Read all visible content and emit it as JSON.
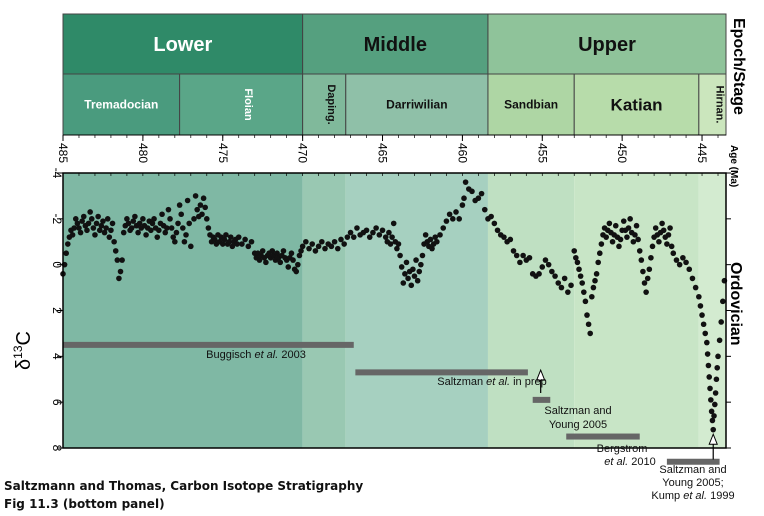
{
  "chart_data": {
    "type": "scatter",
    "title": "",
    "xlabel": "Age (Ma)",
    "ylabel_main": "δ",
    "ylabel_sup": "13",
    "ylabel_tail": "C",
    "period": "Ordovician",
    "header_label": "Epoch/Stage",
    "xlim": [
      485,
      443.5
    ],
    "ylim": [
      8,
      -4
    ],
    "x_ticks": [
      485,
      480,
      475,
      470,
      465,
      460,
      455,
      450,
      445
    ],
    "x_tick_labels": [
      "485",
      "480",
      "475",
      "470",
      "465",
      "460",
      "455",
      "450",
      "445"
    ],
    "y_ticks": [
      -4,
      -2,
      0,
      2,
      4,
      6,
      8
    ],
    "y_tick_labels": [
      "-4",
      "-2",
      "0",
      "2",
      "4",
      "6",
      "8"
    ],
    "epochs": [
      {
        "name": "Lower",
        "start": 485.4,
        "end": 470.0,
        "color": "#2f8a68"
      },
      {
        "name": "Middle",
        "start": 470.0,
        "end": 458.4,
        "color": "#55a07f"
      },
      {
        "name": "Upper",
        "start": 458.4,
        "end": 443.5,
        "color": "#8fc39a"
      }
    ],
    "stages": [
      {
        "name": "Tremadocian",
        "start": 485.4,
        "end": 477.7,
        "color": "#4a9b7e",
        "vertical": false
      },
      {
        "name": "Floian",
        "start": 477.7,
        "end": 470.0,
        "color": "#5aa688",
        "vertical": true
      },
      {
        "name": "Daping.",
        "start": 470.0,
        "end": 467.3,
        "color": "#80b99b",
        "vertical": true
      },
      {
        "name": "Darriwilian",
        "start": 467.3,
        "end": 458.4,
        "color": "#8fc0a8",
        "vertical": false
      },
      {
        "name": "Sandbian",
        "start": 458.4,
        "end": 453.0,
        "color": "#aed6a4",
        "vertical": false
      },
      {
        "name": "Katian",
        "start": 453.0,
        "end": 445.2,
        "color": "#b7dcaa",
        "vertical": false
      },
      {
        "name": "Hirnan.",
        "start": 445.2,
        "end": 443.5,
        "color": "#cbe6bd",
        "vertical": true
      }
    ],
    "background_bands": [
      {
        "start": 485.4,
        "end": 470.0,
        "color": "#7fb8a4"
      },
      {
        "start": 470.0,
        "end": 467.3,
        "color": "#99c8b2"
      },
      {
        "start": 467.3,
        "end": 458.4,
        "color": "#a6d0c0"
      },
      {
        "start": 458.4,
        "end": 453.0,
        "color": "#bfe0c2"
      },
      {
        "start": 453.0,
        "end": 445.2,
        "color": "#c8e5c6"
      },
      {
        "start": 445.2,
        "end": 443.5,
        "color": "#d3ebd0"
      }
    ],
    "points": [
      [
        485.0,
        0.4
      ],
      [
        484.9,
        0.0
      ],
      [
        484.8,
        -0.5
      ],
      [
        484.7,
        -0.9
      ],
      [
        484.6,
        -1.2
      ],
      [
        484.5,
        -1.5
      ],
      [
        484.4,
        -1.3
      ],
      [
        484.3,
        -1.6
      ],
      [
        484.2,
        -2.0
      ],
      [
        484.1,
        -1.8
      ],
      [
        484.0,
        -1.6
      ],
      [
        483.9,
        -1.4
      ],
      [
        483.8,
        -1.9
      ],
      [
        483.7,
        -2.1
      ],
      [
        483.6,
        -1.7
      ],
      [
        483.5,
        -1.5
      ],
      [
        483.4,
        -1.8
      ],
      [
        483.3,
        -2.3
      ],
      [
        483.2,
        -2.0
      ],
      [
        483.1,
        -1.6
      ],
      [
        483.0,
        -1.3
      ],
      [
        482.9,
        -1.8
      ],
      [
        482.8,
        -2.1
      ],
      [
        482.7,
        -1.5
      ],
      [
        482.6,
        -1.7
      ],
      [
        482.5,
        -1.9
      ],
      [
        482.4,
        -1.4
      ],
      [
        482.3,
        -1.6
      ],
      [
        482.2,
        -2.0
      ],
      [
        482.1,
        -1.2
      ],
      [
        482.0,
        -1.5
      ],
      [
        481.9,
        -1.8
      ],
      [
        481.8,
        -1.0
      ],
      [
        481.7,
        -0.6
      ],
      [
        481.6,
        -0.2
      ],
      [
        481.5,
        0.6
      ],
      [
        481.4,
        0.3
      ],
      [
        481.3,
        -0.2
      ],
      [
        481.2,
        -1.4
      ],
      [
        481.1,
        -1.7
      ],
      [
        481.0,
        -2.0
      ],
      [
        480.9,
        -1.8
      ],
      [
        480.8,
        -1.5
      ],
      [
        480.7,
        -1.6
      ],
      [
        480.6,
        -1.9
      ],
      [
        480.5,
        -2.1
      ],
      [
        480.4,
        -1.7
      ],
      [
        480.3,
        -1.4
      ],
      [
        480.2,
        -1.8
      ],
      [
        480.1,
        -1.6
      ],
      [
        480.0,
        -2.0
      ],
      [
        479.9,
        -1.7
      ],
      [
        479.8,
        -1.3
      ],
      [
        479.7,
        -1.6
      ],
      [
        479.6,
        -1.9
      ],
      [
        479.5,
        -1.5
      ],
      [
        479.4,
        -1.8
      ],
      [
        479.3,
        -2.0
      ],
      [
        479.2,
        -1.6
      ],
      [
        479.1,
        -1.2
      ],
      [
        479.0,
        -1.5
      ],
      [
        478.9,
        -1.8
      ],
      [
        478.8,
        -2.2
      ],
      [
        478.7,
        -1.7
      ],
      [
        478.6,
        -1.4
      ],
      [
        478.5,
        -1.6
      ],
      [
        478.4,
        -2.4
      ],
      [
        478.3,
        -2.0
      ],
      [
        478.2,
        -1.6
      ],
      [
        478.1,
        -1.2
      ],
      [
        478.0,
        -1.0
      ],
      [
        477.9,
        -1.4
      ],
      [
        477.8,
        -1.8
      ],
      [
        477.7,
        -2.6
      ],
      [
        477.6,
        -2.2
      ],
      [
        477.5,
        -1.6
      ],
      [
        477.4,
        -1.0
      ],
      [
        477.3,
        -1.3
      ],
      [
        477.2,
        -2.8
      ],
      [
        477.1,
        -1.8
      ],
      [
        477.0,
        -0.8
      ],
      [
        476.8,
        -2.0
      ],
      [
        476.7,
        -3.0
      ],
      [
        476.6,
        -2.4
      ],
      [
        476.5,
        -2.1
      ],
      [
        476.4,
        -2.6
      ],
      [
        476.3,
        -2.2
      ],
      [
        476.2,
        -2.9
      ],
      [
        476.1,
        -2.5
      ],
      [
        476.0,
        -2.0
      ],
      [
        475.9,
        -1.6
      ],
      [
        475.8,
        -1.3
      ],
      [
        475.7,
        -1.0
      ],
      [
        475.6,
        -1.2
      ],
      [
        475.5,
        -1.1
      ],
      [
        475.4,
        -0.9
      ],
      [
        475.3,
        -1.3
      ],
      [
        475.2,
        -1.0
      ],
      [
        475.1,
        -1.2
      ],
      [
        475.0,
        -0.9
      ],
      [
        474.9,
        -1.1
      ],
      [
        474.8,
        -1.3
      ],
      [
        474.7,
        -0.9
      ],
      [
        474.6,
        -1.0
      ],
      [
        474.5,
        -1.2
      ],
      [
        474.4,
        -0.8
      ],
      [
        474.3,
        -1.0
      ],
      [
        474.2,
        -1.1
      ],
      [
        474.1,
        -0.9
      ],
      [
        474.0,
        -1.2
      ],
      [
        473.8,
        -0.9
      ],
      [
        473.6,
        -1.1
      ],
      [
        473.4,
        -0.8
      ],
      [
        473.2,
        -1.0
      ],
      [
        473.0,
        -0.5
      ],
      [
        472.9,
        -0.3
      ],
      [
        472.8,
        -0.5
      ],
      [
        472.7,
        -0.2
      ],
      [
        472.6,
        -0.4
      ],
      [
        472.5,
        -0.6
      ],
      [
        472.4,
        -0.3
      ],
      [
        472.3,
        -0.1
      ],
      [
        472.2,
        -0.4
      ],
      [
        472.1,
        -0.5
      ],
      [
        472.0,
        -0.3
      ],
      [
        471.9,
        -0.6
      ],
      [
        471.8,
        -0.4
      ],
      [
        471.7,
        -0.2
      ],
      [
        471.6,
        -0.5
      ],
      [
        471.5,
        -0.3
      ],
      [
        471.4,
        -0.1
      ],
      [
        471.3,
        -0.4
      ],
      [
        471.2,
        -0.6
      ],
      [
        471.1,
        -0.3
      ],
      [
        471.0,
        -0.2
      ],
      [
        470.9,
        0.1
      ],
      [
        470.8,
        -0.3
      ],
      [
        470.7,
        -0.5
      ],
      [
        470.6,
        -0.2
      ],
      [
        470.5,
        0.2
      ],
      [
        470.4,
        0.3
      ],
      [
        470.3,
        0.0
      ],
      [
        470.2,
        -0.4
      ],
      [
        470.1,
        -0.6
      ],
      [
        470.0,
        -0.8
      ],
      [
        469.8,
        -1.0
      ],
      [
        469.6,
        -0.7
      ],
      [
        469.4,
        -0.9
      ],
      [
        469.2,
        -0.6
      ],
      [
        469.0,
        -0.8
      ],
      [
        468.8,
        -1.0
      ],
      [
        468.6,
        -0.7
      ],
      [
        468.4,
        -0.9
      ],
      [
        468.2,
        -0.8
      ],
      [
        468.0,
        -1.0
      ],
      [
        467.8,
        -0.7
      ],
      [
        467.6,
        -1.1
      ],
      [
        467.4,
        -0.9
      ],
      [
        467.2,
        -1.2
      ],
      [
        467.0,
        -1.4
      ],
      [
        466.8,
        -1.2
      ],
      [
        466.6,
        -1.6
      ],
      [
        466.4,
        -1.3
      ],
      [
        466.2,
        -1.4
      ],
      [
        466.0,
        -1.5
      ],
      [
        465.8,
        -1.2
      ],
      [
        465.6,
        -1.4
      ],
      [
        465.4,
        -1.6
      ],
      [
        465.2,
        -1.3
      ],
      [
        465.0,
        -1.5
      ],
      [
        464.8,
        -1.2
      ],
      [
        464.7,
        -1.0
      ],
      [
        464.6,
        -1.4
      ],
      [
        464.5,
        -0.9
      ],
      [
        464.4,
        -1.2
      ],
      [
        464.3,
        -1.8
      ],
      [
        464.2,
        -1.0
      ],
      [
        464.1,
        -0.7
      ],
      [
        464.0,
        -0.9
      ],
      [
        463.9,
        -0.4
      ],
      [
        463.8,
        0.1
      ],
      [
        463.7,
        0.8
      ],
      [
        463.6,
        0.4
      ],
      [
        463.5,
        -0.1
      ],
      [
        463.4,
        0.6
      ],
      [
        463.3,
        0.3
      ],
      [
        463.2,
        0.9
      ],
      [
        463.1,
        0.2
      ],
      [
        463.0,
        0.5
      ],
      [
        462.9,
        -0.2
      ],
      [
        462.8,
        0.7
      ],
      [
        462.7,
        0.3
      ],
      [
        462.6,
        0.0
      ],
      [
        462.5,
        -0.4
      ],
      [
        462.4,
        -0.9
      ],
      [
        462.3,
        -1.3
      ],
      [
        462.2,
        -1.0
      ],
      [
        462.1,
        -0.8
      ],
      [
        462.0,
        -1.1
      ],
      [
        461.9,
        -0.7
      ],
      [
        461.8,
        -0.9
      ],
      [
        461.7,
        -1.2
      ],
      [
        461.6,
        -1.0
      ],
      [
        461.4,
        -1.3
      ],
      [
        461.2,
        -1.6
      ],
      [
        461.0,
        -1.9
      ],
      [
        460.8,
        -2.2
      ],
      [
        460.6,
        -2.0
      ],
      [
        460.4,
        -2.3
      ],
      [
        460.2,
        -2.0
      ],
      [
        460.0,
        -2.6
      ],
      [
        459.9,
        -2.9
      ],
      [
        459.8,
        -3.6
      ],
      [
        459.6,
        -3.3
      ],
      [
        459.4,
        -3.2
      ],
      [
        459.2,
        -2.8
      ],
      [
        459.0,
        -2.9
      ],
      [
        458.8,
        -3.1
      ],
      [
        458.6,
        -2.4
      ],
      [
        458.4,
        -2.0
      ],
      [
        458.2,
        -2.1
      ],
      [
        458.0,
        -1.8
      ],
      [
        457.8,
        -1.5
      ],
      [
        457.6,
        -1.3
      ],
      [
        457.4,
        -1.2
      ],
      [
        457.2,
        -1.0
      ],
      [
        457.0,
        -1.1
      ],
      [
        456.8,
        -0.6
      ],
      [
        456.6,
        -0.4
      ],
      [
        456.4,
        -0.1
      ],
      [
        456.2,
        -0.4
      ],
      [
        456.0,
        -0.2
      ],
      [
        455.8,
        -0.3
      ],
      [
        455.6,
        0.4
      ],
      [
        455.4,
        0.5
      ],
      [
        455.2,
        0.4
      ],
      [
        455.0,
        0.1
      ],
      [
        454.8,
        -0.2
      ],
      [
        454.6,
        0.0
      ],
      [
        454.4,
        0.3
      ],
      [
        454.2,
        0.5
      ],
      [
        454.0,
        0.8
      ],
      [
        453.8,
        1.0
      ],
      [
        453.6,
        0.6
      ],
      [
        453.4,
        1.2
      ],
      [
        453.2,
        0.9
      ],
      [
        453.0,
        -0.6
      ],
      [
        452.9,
        -0.3
      ],
      [
        452.8,
        -0.1
      ],
      [
        452.7,
        0.2
      ],
      [
        452.6,
        0.5
      ],
      [
        452.5,
        0.8
      ],
      [
        452.4,
        1.2
      ],
      [
        452.3,
        1.6
      ],
      [
        452.2,
        2.2
      ],
      [
        452.1,
        2.6
      ],
      [
        452.0,
        3.0
      ],
      [
        451.9,
        1.4
      ],
      [
        451.8,
        1.0
      ],
      [
        451.7,
        0.7
      ],
      [
        451.6,
        0.4
      ],
      [
        451.5,
        -0.1
      ],
      [
        451.4,
        -0.5
      ],
      [
        451.3,
        -0.9
      ],
      [
        451.2,
        -1.3
      ],
      [
        451.1,
        -1.6
      ],
      [
        451.0,
        -1.2
      ],
      [
        450.9,
        -1.5
      ],
      [
        450.8,
        -1.8
      ],
      [
        450.7,
        -1.4
      ],
      [
        450.6,
        -1.0
      ],
      [
        450.5,
        -1.3
      ],
      [
        450.4,
        -1.7
      ],
      [
        450.3,
        -1.2
      ],
      [
        450.2,
        -0.8
      ],
      [
        450.1,
        -1.1
      ],
      [
        450.0,
        -1.5
      ],
      [
        449.9,
        -1.9
      ],
      [
        449.8,
        -1.5
      ],
      [
        449.7,
        -1.2
      ],
      [
        449.6,
        -1.6
      ],
      [
        449.5,
        -2.0
      ],
      [
        449.4,
        -1.4
      ],
      [
        449.3,
        -1.0
      ],
      [
        449.2,
        -1.3
      ],
      [
        449.1,
        -1.7
      ],
      [
        449.0,
        -1.1
      ],
      [
        448.9,
        -0.6
      ],
      [
        448.8,
        -0.2
      ],
      [
        448.7,
        0.3
      ],
      [
        448.6,
        0.8
      ],
      [
        448.5,
        1.2
      ],
      [
        448.4,
        0.6
      ],
      [
        448.3,
        0.2
      ],
      [
        448.2,
        -0.3
      ],
      [
        448.1,
        -0.8
      ],
      [
        448.0,
        -1.2
      ],
      [
        447.9,
        -1.6
      ],
      [
        447.8,
        -1.3
      ],
      [
        447.7,
        -1.0
      ],
      [
        447.6,
        -1.4
      ],
      [
        447.5,
        -1.8
      ],
      [
        447.4,
        -1.5
      ],
      [
        447.3,
        -1.2
      ],
      [
        447.2,
        -0.9
      ],
      [
        447.1,
        -1.3
      ],
      [
        447.0,
        -1.6
      ],
      [
        446.9,
        -0.8
      ],
      [
        446.8,
        -0.5
      ],
      [
        446.6,
        -0.2
      ],
      [
        446.4,
        0.0
      ],
      [
        446.2,
        -0.3
      ],
      [
        446.0,
        -0.1
      ],
      [
        445.8,
        0.2
      ],
      [
        445.6,
        0.6
      ],
      [
        445.4,
        1.0
      ],
      [
        445.2,
        1.4
      ],
      [
        445.1,
        1.8
      ],
      [
        445.0,
        2.2
      ],
      [
        444.9,
        2.6
      ],
      [
        444.8,
        3.0
      ],
      [
        444.7,
        3.4
      ],
      [
        444.65,
        3.9
      ],
      [
        444.6,
        4.4
      ],
      [
        444.55,
        4.9
      ],
      [
        444.5,
        5.4
      ],
      [
        444.45,
        5.9
      ],
      [
        444.4,
        6.4
      ],
      [
        444.35,
        6.8
      ],
      [
        444.3,
        7.2
      ],
      [
        444.25,
        6.6
      ],
      [
        444.2,
        6.1
      ],
      [
        444.15,
        5.6
      ],
      [
        444.1,
        5.0
      ],
      [
        444.05,
        4.5
      ],
      [
        444.0,
        4.0
      ],
      [
        443.9,
        3.3
      ],
      [
        443.8,
        2.5
      ],
      [
        443.7,
        1.6
      ],
      [
        443.6,
        0.7
      ]
    ],
    "references": [
      {
        "label": "Buggisch ",
        "label_italic": "et al.",
        "label_tail": " 2003",
        "start": 485.4,
        "end": 466.8,
        "y": 3.5
      },
      {
        "label": "Saltzman ",
        "label_italic": "et al.",
        "label_tail": " in prep",
        "start": 466.7,
        "end": 455.9,
        "y": 4.7
      },
      {
        "label": "Saltzman and",
        "label_italic": "",
        "label_tail": "",
        "label2": "Young 2005",
        "start": 455.6,
        "end": 454.5,
        "y": 5.9
      },
      {
        "label": "Bergstrom",
        "label_italic": "",
        "label_tail": "",
        "label2_italic": "et al.",
        "label2_tail": " 2010",
        "start": 453.5,
        "end": 448.9,
        "y": 7.5
      },
      {
        "label": "Saltzman and",
        "label_italic": "",
        "label_tail": "",
        "label2": "Young 2005;",
        "label3": "Kump ",
        "label3_italic": "et al.",
        "label3_tail": " 1999",
        "start": 447.2,
        "end": 443.9,
        "y": 8.6
      }
    ],
    "arrows": [
      {
        "x": 455.1,
        "y_from": 5.6,
        "y_to": 4.6
      },
      {
        "x": 444.3,
        "y_from": 8.5,
        "y_to": 7.4
      }
    ]
  },
  "caption": {
    "line1": "Saltzmann and Thomas, Carbon Isotope Stratigraphy",
    "line2": "Fig 11.3 (bottom panel)"
  }
}
